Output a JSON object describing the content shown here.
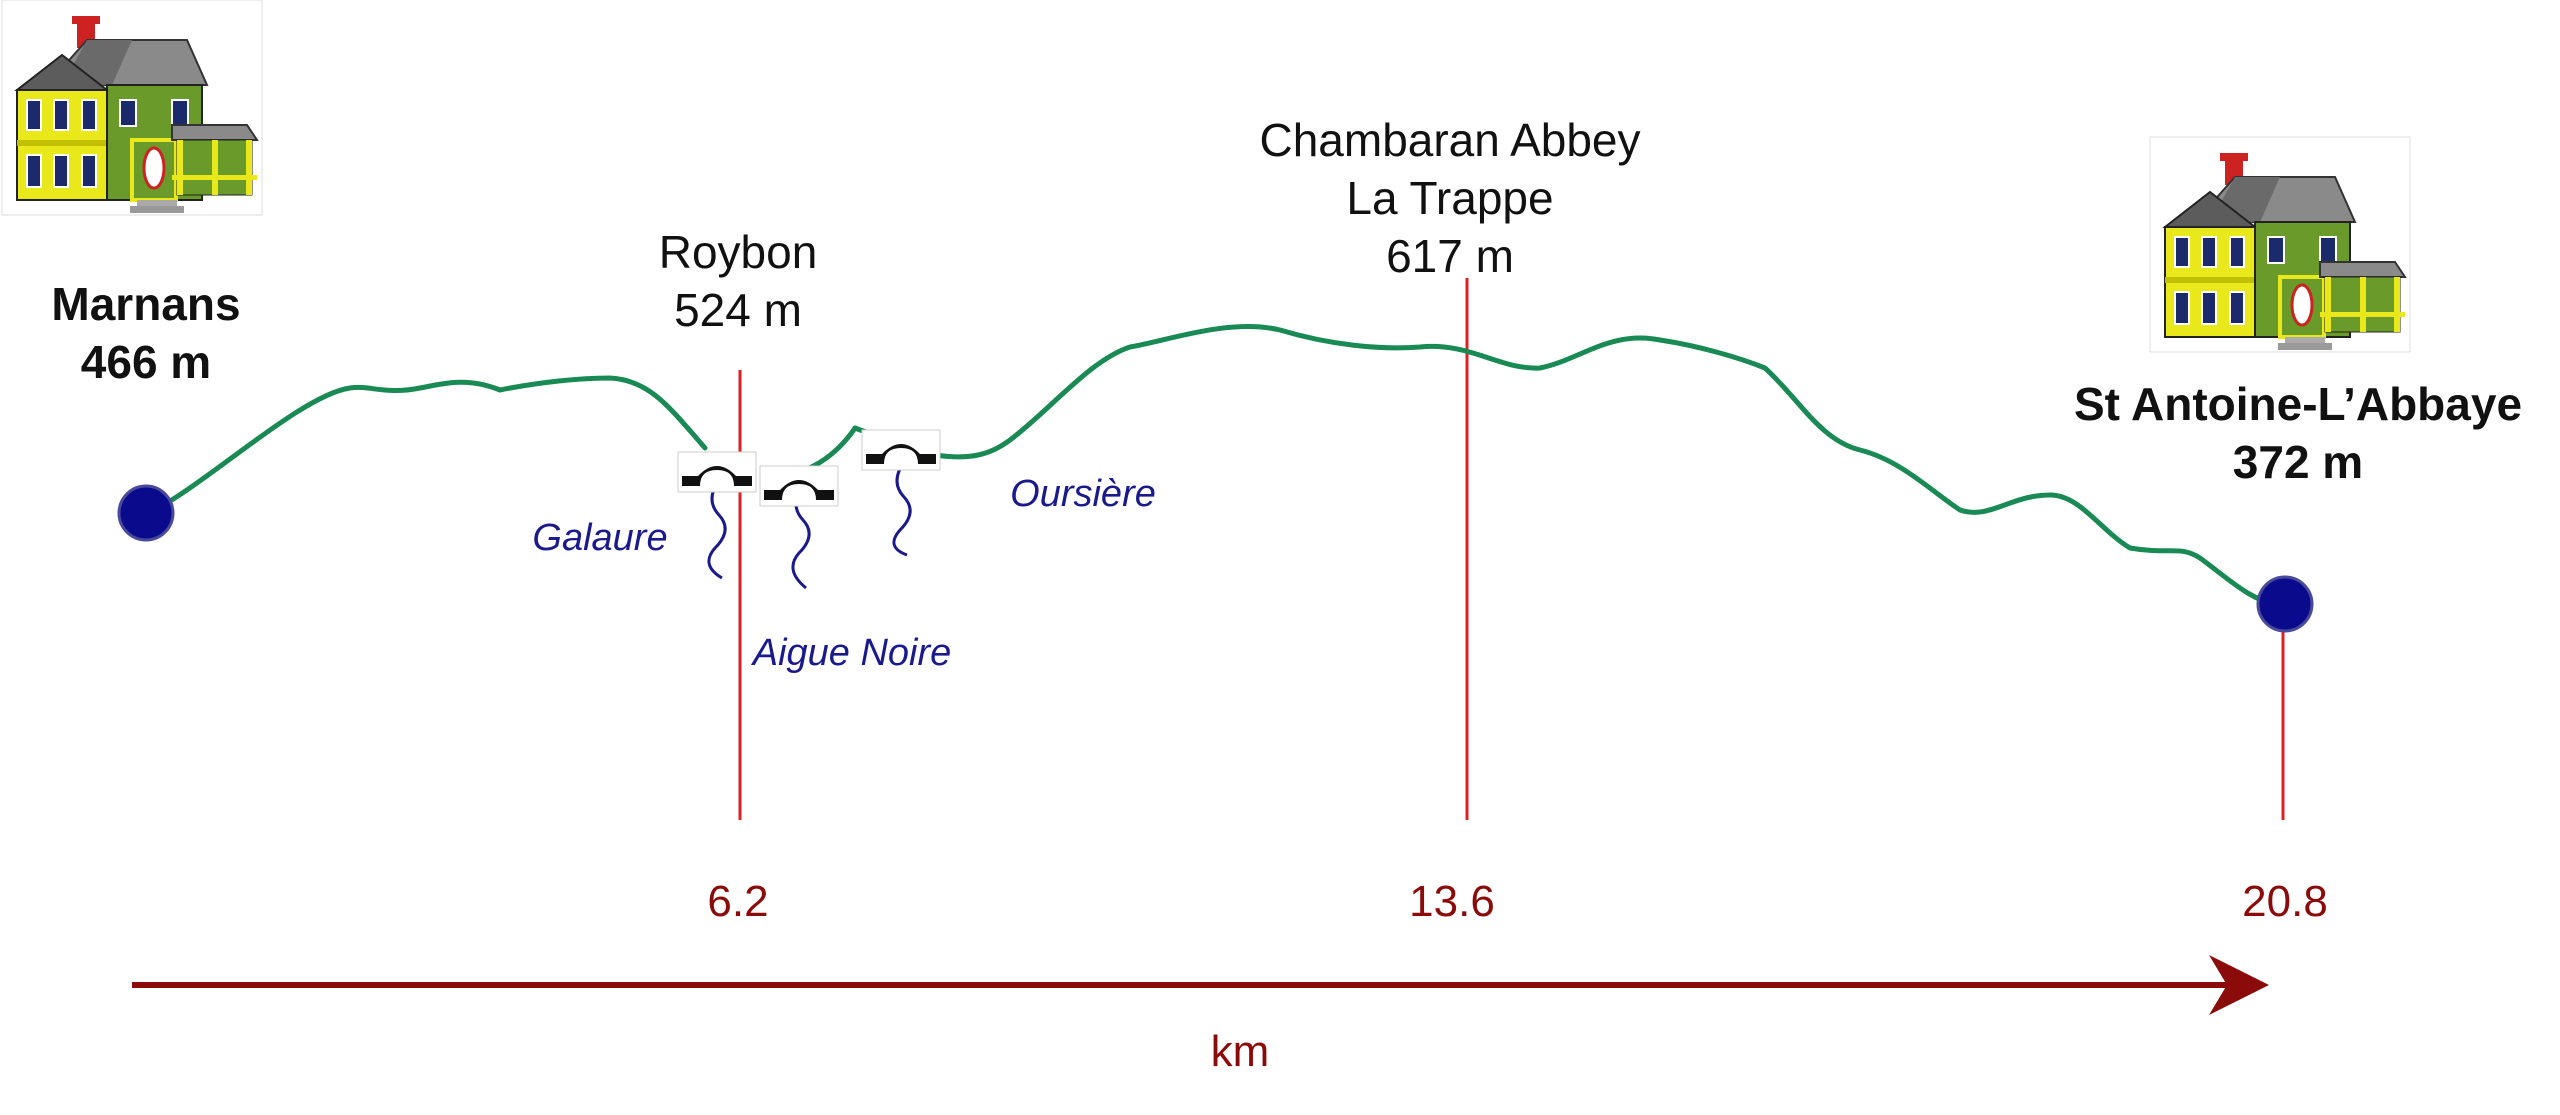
{
  "start": {
    "name": "Marnans",
    "elevation": "466 m"
  },
  "roybon": {
    "name": "Roybon",
    "elevation": "524 m"
  },
  "abbey": {
    "name_line1": "Chambaran Abbey",
    "name_line2": "La Trappe",
    "elevation": "617 m"
  },
  "end": {
    "name": "St Antoine-L’Abbaye",
    "elevation": "372 m"
  },
  "rivers": {
    "galaure": "Galaure",
    "aigue_noire": "Aigue Noire",
    "oursiere": "Oursière"
  },
  "axis": {
    "unit": "km",
    "ticks": [
      "6.2",
      "13.6",
      "20.8"
    ]
  },
  "colors": {
    "profile": "#1a8a55",
    "marker": "#0a0a8c",
    "guide": "#e02020",
    "axis": "#8b0a0a",
    "river": "#1a1a8c"
  }
}
